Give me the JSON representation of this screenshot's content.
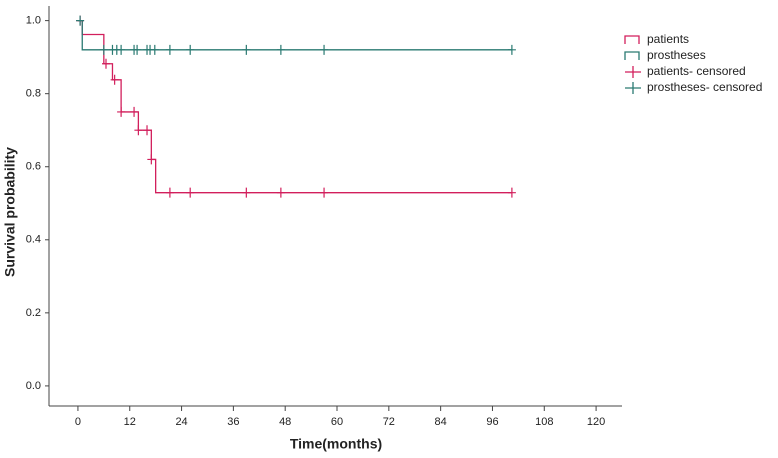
{
  "chart_data": {
    "type": "survival",
    "x_label": "Time(months)",
    "y_label": "Survival probability",
    "xlim": [
      -6.7,
      126
    ],
    "ylim": [
      -0.055,
      1.04
    ],
    "xticks": [
      0,
      12,
      24,
      36,
      48,
      60,
      72,
      84,
      96,
      108,
      120
    ],
    "yticks": [
      {
        "value": 0,
        "label": "0.0"
      },
      0.2,
      0.4,
      0.6,
      0.8,
      {
        "value": 1,
        "label": "1.0"
      }
    ],
    "legend": "top-right",
    "series": [
      {
        "name": "patients",
        "color": "#d21f5c",
        "style": "step",
        "x": [
          0,
          1,
          6,
          8,
          10,
          14,
          17,
          18,
          100.5
        ],
        "values": [
          1,
          0.962,
          0.882,
          0.838,
          0.75,
          0.7,
          0.62,
          0.529,
          0.529
        ]
      },
      {
        "name": "prostheses",
        "color": "#2a7a72",
        "style": "step",
        "x": [
          0,
          1,
          100.5
        ],
        "values": [
          1,
          0.92,
          0.92
        ]
      },
      {
        "name": "patients- censored",
        "color": "#d21f5c",
        "style": "censor",
        "x": [
          0.5,
          6.5,
          8.5,
          10,
          13,
          14,
          16,
          17,
          21.3,
          26,
          39,
          47,
          57,
          100.5
        ],
        "values": [
          1,
          0.882,
          0.838,
          0.75,
          0.75,
          0.7,
          0.7,
          0.62,
          0.529,
          0.529,
          0.529,
          0.529,
          0.529,
          0.529
        ]
      },
      {
        "name": "prostheses- censored",
        "color": "#2a7a72",
        "style": "censor",
        "x": [
          0.5,
          6,
          8,
          9,
          10,
          13,
          13.7,
          16,
          16.7,
          17.8,
          21.3,
          26,
          39,
          47,
          57,
          100.5
        ],
        "values": [
          1,
          0.92,
          0.92,
          0.92,
          0.92,
          0.92,
          0.92,
          0.92,
          0.92,
          0.92,
          0.92,
          0.92,
          0.92,
          0.92,
          0.92,
          0.92
        ]
      }
    ]
  }
}
